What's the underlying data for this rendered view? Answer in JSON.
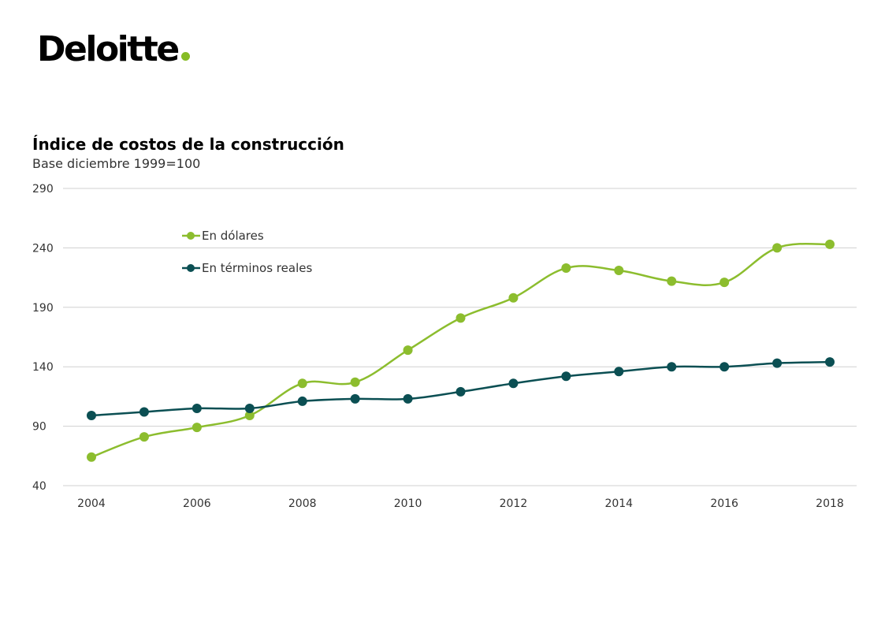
{
  "logo": {
    "text": "Deloitte",
    "dot_color": "#86bc25"
  },
  "chart_data": {
    "type": "line",
    "title": "Índice de costos de la construcción",
    "subtitle": "Base diciembre 1999=100",
    "xlabel": "",
    "ylabel": "",
    "x": [
      2004,
      2005,
      2006,
      2007,
      2008,
      2009,
      2010,
      2011,
      2012,
      2013,
      2014,
      2015,
      2016,
      2017,
      2018
    ],
    "x_ticks": [
      "2004",
      "2006",
      "2008",
      "2010",
      "2012",
      "2014",
      "2016",
      "2018"
    ],
    "y_ticks": [
      "290",
      "240",
      "190",
      "140",
      "90",
      "40"
    ],
    "xlim": [
      2004,
      2018
    ],
    "ylim": [
      40,
      290
    ],
    "grid": "horizontal",
    "legend_position": "top-left",
    "series": [
      {
        "name": "En dólares",
        "color": "#8cbd2e",
        "values": [
          64,
          81,
          89,
          99,
          126,
          127,
          154,
          181,
          198,
          223,
          221,
          212,
          211,
          240,
          243
        ]
      },
      {
        "name": "En términos reales",
        "color": "#0b4f53",
        "values": [
          99,
          102,
          105,
          105,
          111,
          113,
          113,
          119,
          126,
          132,
          136,
          140,
          140,
          143,
          144
        ]
      }
    ]
  }
}
